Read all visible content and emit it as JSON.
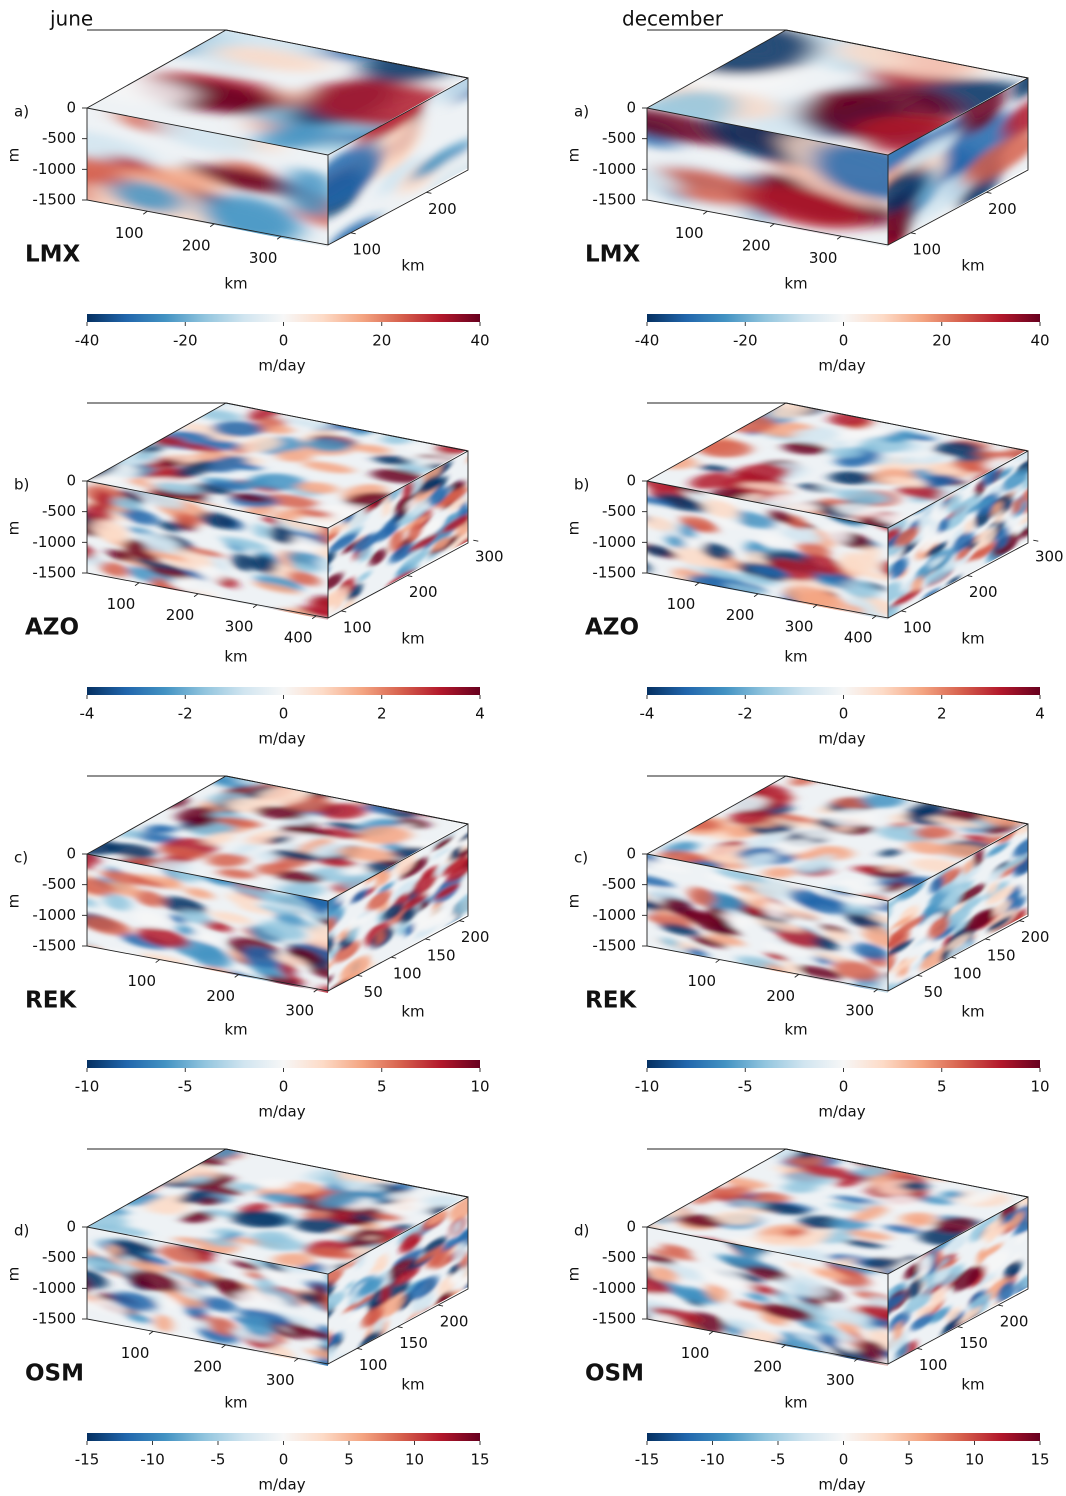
{
  "chart_data": {
    "type": "slice-cube",
    "columns": [
      "june",
      "december"
    ],
    "rows": [
      {
        "label": "a)",
        "region": "LMX",
        "zlabel": "m",
        "zlim": [
          -1500,
          0
        ],
        "zticks": [
          0,
          -500,
          -1000,
          -1500
        ],
        "xlabel": "km",
        "xlim": [
          10,
          370
        ],
        "xticks": [
          100,
          200,
          300
        ],
        "ylabel": "km",
        "ylim": [
          70,
          255
        ],
        "yticks": [
          100,
          200
        ],
        "colorbar": {
          "label": "m/day",
          "lim": [
            -40,
            40
          ],
          "ticks": [
            -40,
            -20,
            0,
            20,
            40
          ]
        }
      },
      {
        "label": "b)",
        "region": "AZO",
        "zlabel": "m",
        "zlim": [
          -1500,
          0
        ],
        "zticks": [
          0,
          -500,
          -1000,
          -1500
        ],
        "xlabel": "km",
        "xlim": [
          12,
          420
        ],
        "xticks": [
          100,
          200,
          300,
          400
        ],
        "ylabel": "km",
        "ylim": [
          80,
          292
        ],
        "yticks": [
          100,
          200,
          300
        ],
        "colorbar": {
          "label": "m/day",
          "lim": [
            -4,
            4
          ],
          "ticks": [
            -4,
            -2,
            0,
            2,
            4
          ]
        }
      },
      {
        "label": "c)",
        "region": "REK",
        "zlabel": "m",
        "zlim": [
          -1500,
          0
        ],
        "zticks": [
          0,
          -500,
          -1000,
          -1500
        ],
        "xlabel": "km",
        "xlim": [
          8,
          313
        ],
        "xticks": [
          100,
          200,
          300
        ],
        "ylabel": "km",
        "ylim": [
          7,
          213
        ],
        "yticks": [
          50,
          100,
          150,
          200
        ],
        "colorbar": {
          "label": "m/day",
          "lim": [
            -10,
            10
          ],
          "ticks": [
            -10,
            -5,
            0,
            5,
            10
          ]
        }
      },
      {
        "label": "d)",
        "region": "OSM",
        "zlabel": "m",
        "zlim": [
          -1500,
          0
        ],
        "zticks": [
          0,
          -500,
          -1000,
          -1500
        ],
        "xlabel": "km",
        "xlim": [
          9,
          341
        ],
        "xticks": [
          100,
          200,
          300
        ],
        "ylabel": "km",
        "ylim": [
          64,
          237
        ],
        "yticks": [
          100,
          150,
          200
        ],
        "colorbar": {
          "label": "m/day",
          "lim": [
            -15,
            15
          ],
          "ticks": [
            -15,
            -10,
            -5,
            0,
            5,
            10,
            15
          ]
        }
      }
    ]
  }
}
